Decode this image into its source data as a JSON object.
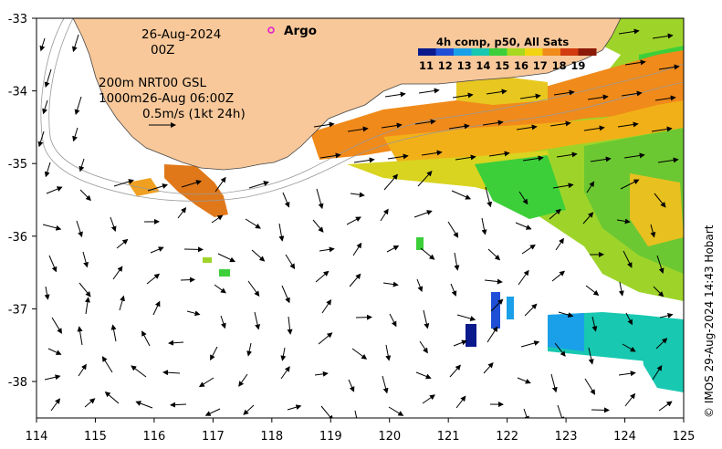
{
  "annotations": {
    "date": "26-Aug-2024",
    "time": "00Z",
    "line1": "200m  NRT00 GSL",
    "line2": "1000m26-Aug 06:00Z",
    "line3": "0.5m/s (1kt 24h)",
    "argo": "Argo"
  },
  "legend": {
    "title": "4h comp, p50, All Sats",
    "ticks": [
      "11",
      "12",
      "13",
      "14",
      "15",
      "16",
      "17",
      "18",
      "19"
    ],
    "colors": [
      "#0a1a8c",
      "#1f4fd6",
      "#1aa0e8",
      "#18c8b0",
      "#3ccf3a",
      "#a8d820",
      "#f2d410",
      "#f08a1a",
      "#d23c10",
      "#8c1a08"
    ]
  },
  "credit": "© IMOS 29-Aug-2024 14:43 Hobart",
  "axes": {
    "x_ticks": [
      "114",
      "115",
      "116",
      "117",
      "118",
      "119",
      "120",
      "121",
      "122",
      "123",
      "124",
      "125"
    ],
    "y_ticks": [
      "-33",
      "-34",
      "-35",
      "-36",
      "-37",
      "-38"
    ]
  },
  "colors": {
    "land": "#f8c89a",
    "argo": "#e020c8"
  }
}
